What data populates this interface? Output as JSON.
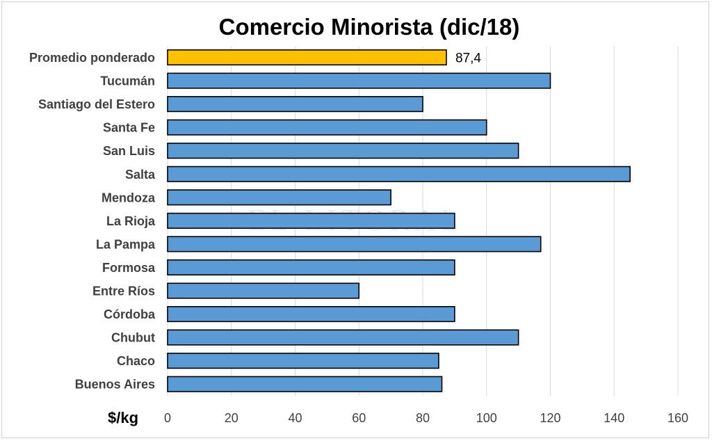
{
  "chart_data": {
    "type": "bar",
    "orientation": "horizontal",
    "title": "Comercio Minorista (dic/18)",
    "unit_label": "$/kg",
    "categories": [
      "Promedio ponderado",
      "Tucumán",
      "Santiago del Estero",
      "Santa Fe",
      "San Luis",
      "Salta",
      "Mendoza",
      "La Rioja",
      "La Pampa",
      "Formosa",
      "Entre Ríos",
      "Córdoba",
      "Chubut",
      "Chaco",
      "Buenos Aires"
    ],
    "values": [
      87.4,
      120,
      80,
      100,
      110,
      145,
      70,
      90,
      117,
      90,
      60,
      90,
      110,
      85,
      86
    ],
    "data_labels": {
      "0": "87,4"
    },
    "colors": {
      "highlight": "#FFC000",
      "bar": "#5B9BD5",
      "bar_outline": "#000000",
      "gridline": "#D9D9D9"
    },
    "highlight_index": 0,
    "xlim": [
      0,
      160
    ],
    "xticks": [
      "0",
      "20",
      "40",
      "60",
      "80",
      "100",
      "120",
      "140",
      "160"
    ],
    "grid": true,
    "legend": "none"
  },
  "watermark": "EL LITORAL"
}
